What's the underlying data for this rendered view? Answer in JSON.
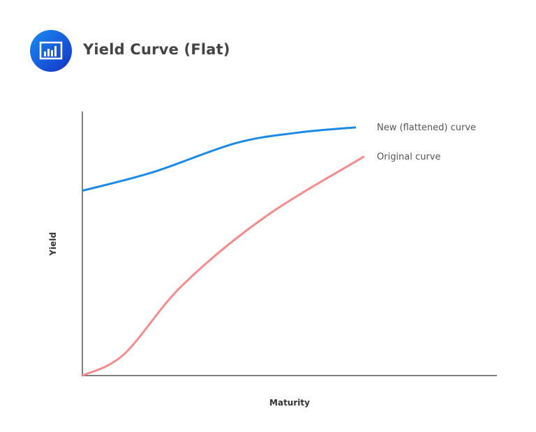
{
  "header": {
    "title": "Yield Curve (Flat)",
    "icon": "bar-chart-icon"
  },
  "chart_data": {
    "type": "line",
    "title": "Yield Curve (Flat)",
    "xlabel": "Maturity",
    "ylabel": "Yield",
    "xlim": [
      0,
      100
    ],
    "ylim": [
      0,
      100
    ],
    "grid": false,
    "legend": "inline labels at right end of curves",
    "series": [
      {
        "name": "New (flattened) curve",
        "color": "#1a8ae8",
        "x": [
          0,
          17,
          37,
          52,
          66
        ],
        "y": [
          70,
          77,
          88,
          92,
          94
        ]
      },
      {
        "name": "Original curve",
        "color": "#f88c8c",
        "x": [
          0,
          10,
          24,
          44,
          68
        ],
        "y": [
          0,
          8,
          34,
          60,
          83
        ]
      }
    ]
  }
}
